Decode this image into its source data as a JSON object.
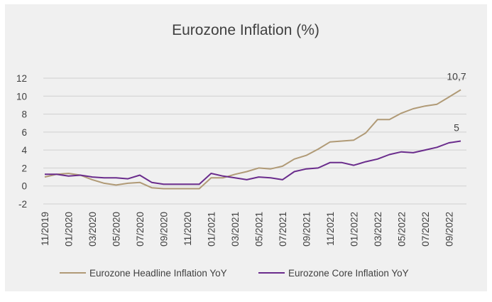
{
  "chart_data": {
    "type": "line",
    "title": "Eurozone Inflation (%)",
    "xlabel": "",
    "ylabel": "",
    "ylim": [
      -2,
      12
    ],
    "yticks": [
      "12",
      "10",
      "8",
      "6",
      "4",
      "2",
      "0",
      "-2"
    ],
    "x": [
      "11/2019",
      "12/2019",
      "01/2020",
      "02/2020",
      "03/2020",
      "04/2020",
      "05/2020",
      "06/2020",
      "07/2020",
      "08/2020",
      "09/2020",
      "10/2020",
      "11/2020",
      "12/2020",
      "01/2021",
      "02/2021",
      "03/2021",
      "04/2021",
      "05/2021",
      "06/2021",
      "07/2021",
      "08/2021",
      "09/2021",
      "10/2021",
      "11/2021",
      "12/2021",
      "01/2022",
      "02/2022",
      "03/2022",
      "04/2022",
      "05/2022",
      "06/2022",
      "07/2022",
      "08/2022",
      "09/2022",
      "10/2022"
    ],
    "xtick_labels": [
      "11/2019",
      "01/2020",
      "03/2020",
      "05/2020",
      "07/2020",
      "09/2020",
      "11/2020",
      "01/2021",
      "03/2021",
      "05/2021",
      "07/2021",
      "09/2021",
      "11/2021",
      "01/2022",
      "03/2022",
      "05/2022",
      "07/2022",
      "09/2022"
    ],
    "grid": true,
    "legend_position": "bottom",
    "series": [
      {
        "name": "Eurozone Headline Inflation YoY",
        "color": "#b09a76",
        "values": [
          1.0,
          1.3,
          1.4,
          1.2,
          0.7,
          0.3,
          0.1,
          0.3,
          0.4,
          -0.2,
          -0.3,
          -0.3,
          -0.3,
          -0.3,
          0.9,
          0.9,
          1.3,
          1.6,
          2.0,
          1.9,
          2.2,
          3.0,
          3.4,
          4.1,
          4.9,
          5.0,
          5.1,
          5.9,
          7.4,
          7.4,
          8.1,
          8.6,
          8.9,
          9.1,
          9.9,
          10.7
        ],
        "end_label": "10,7"
      },
      {
        "name": "Eurozone Core Inflation YoY",
        "color": "#6a2c8c",
        "values": [
          1.3,
          1.3,
          1.1,
          1.2,
          1.0,
          0.9,
          0.9,
          0.8,
          1.2,
          0.4,
          0.2,
          0.2,
          0.2,
          0.2,
          1.4,
          1.1,
          0.9,
          0.7,
          1.0,
          0.9,
          0.7,
          1.6,
          1.9,
          2.0,
          2.6,
          2.6,
          2.3,
          2.7,
          3.0,
          3.5,
          3.8,
          3.7,
          4.0,
          4.3,
          4.8,
          5.0
        ],
        "end_label": "5"
      }
    ]
  }
}
